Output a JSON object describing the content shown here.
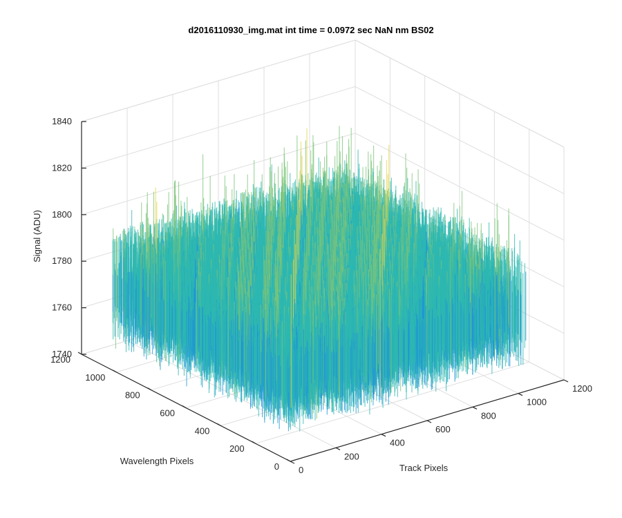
{
  "chart_data": {
    "type": "surface",
    "title": "d2016110930_img.mat int time = 0.0972 sec  NaN nm BS02",
    "xlabel": "Track Pixels",
    "ylabel": "Wavelength Pixels",
    "zlabel": "Signal (ADU)",
    "xlim": [
      0,
      1200
    ],
    "ylim": [
      0,
      1200
    ],
    "zlim": [
      1740,
      1840
    ],
    "xticks": [
      0,
      200,
      400,
      600,
      800,
      1000,
      1200
    ],
    "yticks": [
      0,
      200,
      400,
      600,
      800,
      1000,
      1200
    ],
    "zticks": [
      1740,
      1760,
      1780,
      1800,
      1820,
      1840
    ],
    "grid": true,
    "colormap": [
      "#0072bd",
      "#1f96d6",
      "#2db8b0",
      "#7cc47a",
      "#e6d44a"
    ],
    "surface": {
      "x_range": [
        0,
        1024
      ],
      "y_range": [
        0,
        1024
      ],
      "mean_signal": 1775,
      "min_signal": 1742,
      "max_signal": 1830
    }
  }
}
